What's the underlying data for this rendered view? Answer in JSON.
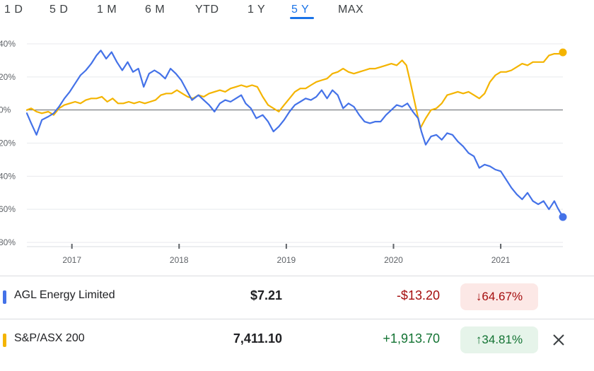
{
  "tabs": [
    {
      "label": "1 D",
      "active": false
    },
    {
      "label": "5 D",
      "active": false
    },
    {
      "label": "1 M",
      "active": false
    },
    {
      "label": "6 M",
      "active": false
    },
    {
      "label": "YTD",
      "active": false
    },
    {
      "label": "1 Y",
      "active": false
    },
    {
      "label": "5 Y",
      "active": true
    },
    {
      "label": "MAX",
      "active": false
    }
  ],
  "rows": [
    {
      "name": "AGL Energy Limited",
      "price": "$7.21",
      "change": "-$13.20",
      "percent": "64.67%",
      "direction": "down",
      "color": "#4472e8",
      "change_color": "#a50e0e",
      "badge_bg": "#fce8e6"
    },
    {
      "name": "S&P/ASX 200",
      "price": "7,411.10",
      "change": "+1,913.70",
      "percent": "34.81%",
      "direction": "up",
      "color": "#f4b400",
      "change_color": "#137333",
      "badge_bg": "#e6f4ea"
    }
  ],
  "chart_data": {
    "type": "line",
    "y_tick_labels": [
      "40%",
      "20%",
      "0%",
      "20%",
      "40%",
      "60%",
      "80%"
    ],
    "y_ticks": [
      40,
      20,
      0,
      -20,
      -40,
      -60,
      -80
    ],
    "ylim": [
      -80,
      40
    ],
    "x_tick_labels": [
      "2017",
      "2018",
      "2019",
      "2020",
      "2021"
    ],
    "x_ticks": [
      2017,
      2018,
      2019,
      2020,
      2021
    ],
    "xlim": [
      2016.58,
      2021.58
    ],
    "zero_line": true,
    "series": [
      {
        "name": "AGL Energy Limited",
        "color": "#4472e8",
        "points": [
          [
            2016.58,
            -2
          ],
          [
            2016.62,
            -8
          ],
          [
            2016.67,
            -15
          ],
          [
            2016.72,
            -6
          ],
          [
            2016.78,
            -4
          ],
          [
            2016.83,
            -2
          ],
          [
            2016.88,
            2
          ],
          [
            2016.93,
            7
          ],
          [
            2016.98,
            11
          ],
          [
            2017.03,
            16
          ],
          [
            2017.08,
            21
          ],
          [
            2017.13,
            24
          ],
          [
            2017.18,
            28
          ],
          [
            2017.23,
            33
          ],
          [
            2017.27,
            36
          ],
          [
            2017.32,
            31
          ],
          [
            2017.37,
            35
          ],
          [
            2017.42,
            29
          ],
          [
            2017.47,
            24
          ],
          [
            2017.52,
            29
          ],
          [
            2017.57,
            23
          ],
          [
            2017.62,
            25
          ],
          [
            2017.67,
            14
          ],
          [
            2017.72,
            22
          ],
          [
            2017.77,
            24
          ],
          [
            2017.82,
            22
          ],
          [
            2017.87,
            19
          ],
          [
            2017.92,
            25
          ],
          [
            2017.97,
            22
          ],
          [
            2018.02,
            18
          ],
          [
            2018.07,
            12
          ],
          [
            2018.12,
            6
          ],
          [
            2018.18,
            9
          ],
          [
            2018.23,
            6
          ],
          [
            2018.28,
            3
          ],
          [
            2018.33,
            -1
          ],
          [
            2018.38,
            4
          ],
          [
            2018.43,
            6
          ],
          [
            2018.48,
            5
          ],
          [
            2018.53,
            7
          ],
          [
            2018.58,
            9
          ],
          [
            2018.62,
            4
          ],
          [
            2018.67,
            1
          ],
          [
            2018.72,
            -5
          ],
          [
            2018.78,
            -3
          ],
          [
            2018.83,
            -7
          ],
          [
            2018.88,
            -13
          ],
          [
            2018.93,
            -10
          ],
          [
            2018.98,
            -6
          ],
          [
            2019.03,
            -1
          ],
          [
            2019.08,
            3
          ],
          [
            2019.13,
            5
          ],
          [
            2019.18,
            7
          ],
          [
            2019.23,
            6
          ],
          [
            2019.28,
            8
          ],
          [
            2019.33,
            12
          ],
          [
            2019.38,
            7
          ],
          [
            2019.43,
            12
          ],
          [
            2019.48,
            9
          ],
          [
            2019.53,
            1
          ],
          [
            2019.58,
            4
          ],
          [
            2019.63,
            2
          ],
          [
            2019.68,
            -3
          ],
          [
            2019.73,
            -7
          ],
          [
            2019.78,
            -8
          ],
          [
            2019.83,
            -7
          ],
          [
            2019.88,
            -7
          ],
          [
            2019.93,
            -3
          ],
          [
            2019.98,
            0
          ],
          [
            2020.03,
            3
          ],
          [
            2020.08,
            2
          ],
          [
            2020.13,
            4
          ],
          [
            2020.18,
            -1
          ],
          [
            2020.23,
            -5
          ],
          [
            2020.26,
            -13
          ],
          [
            2020.3,
            -21
          ],
          [
            2020.35,
            -16
          ],
          [
            2020.4,
            -15
          ],
          [
            2020.45,
            -18
          ],
          [
            2020.5,
            -14
          ],
          [
            2020.55,
            -15
          ],
          [
            2020.6,
            -19
          ],
          [
            2020.65,
            -22
          ],
          [
            2020.7,
            -26
          ],
          [
            2020.75,
            -28
          ],
          [
            2020.8,
            -35
          ],
          [
            2020.85,
            -33
          ],
          [
            2020.9,
            -34
          ],
          [
            2020.95,
            -36
          ],
          [
            2021.0,
            -37
          ],
          [
            2021.05,
            -42
          ],
          [
            2021.1,
            -47
          ],
          [
            2021.15,
            -51
          ],
          [
            2021.2,
            -54
          ],
          [
            2021.25,
            -50
          ],
          [
            2021.3,
            -55
          ],
          [
            2021.35,
            -57
          ],
          [
            2021.4,
            -55
          ],
          [
            2021.45,
            -60
          ],
          [
            2021.5,
            -55
          ],
          [
            2021.53,
            -59
          ],
          [
            2021.58,
            -64.67
          ]
        ]
      },
      {
        "name": "S&P/ASX 200",
        "color": "#f4b400",
        "points": [
          [
            2016.58,
            0
          ],
          [
            2016.62,
            1
          ],
          [
            2016.67,
            -1
          ],
          [
            2016.72,
            -2
          ],
          [
            2016.78,
            -1
          ],
          [
            2016.83,
            -3
          ],
          [
            2016.88,
            1
          ],
          [
            2016.93,
            3
          ],
          [
            2016.98,
            4
          ],
          [
            2017.03,
            5
          ],
          [
            2017.08,
            4
          ],
          [
            2017.13,
            6
          ],
          [
            2017.18,
            7
          ],
          [
            2017.23,
            7
          ],
          [
            2017.28,
            8
          ],
          [
            2017.33,
            5
          ],
          [
            2017.38,
            7
          ],
          [
            2017.43,
            4
          ],
          [
            2017.48,
            4
          ],
          [
            2017.53,
            5
          ],
          [
            2017.58,
            4
          ],
          [
            2017.63,
            5
          ],
          [
            2017.68,
            4
          ],
          [
            2017.73,
            5
          ],
          [
            2017.78,
            6
          ],
          [
            2017.83,
            9
          ],
          [
            2017.88,
            10
          ],
          [
            2017.93,
            10
          ],
          [
            2017.98,
            12
          ],
          [
            2018.03,
            10
          ],
          [
            2018.08,
            8
          ],
          [
            2018.13,
            7
          ],
          [
            2018.18,
            9
          ],
          [
            2018.23,
            8
          ],
          [
            2018.28,
            10
          ],
          [
            2018.33,
            11
          ],
          [
            2018.38,
            12
          ],
          [
            2018.43,
            11
          ],
          [
            2018.48,
            13
          ],
          [
            2018.53,
            14
          ],
          [
            2018.58,
            15
          ],
          [
            2018.63,
            14
          ],
          [
            2018.68,
            15
          ],
          [
            2018.73,
            14
          ],
          [
            2018.78,
            8
          ],
          [
            2018.83,
            3
          ],
          [
            2018.88,
            1
          ],
          [
            2018.93,
            -1
          ],
          [
            2018.98,
            3
          ],
          [
            2019.03,
            7
          ],
          [
            2019.08,
            11
          ],
          [
            2019.13,
            13
          ],
          [
            2019.18,
            13
          ],
          [
            2019.23,
            15
          ],
          [
            2019.28,
            17
          ],
          [
            2019.33,
            18
          ],
          [
            2019.38,
            19
          ],
          [
            2019.43,
            22
          ],
          [
            2019.48,
            23
          ],
          [
            2019.53,
            25
          ],
          [
            2019.58,
            23
          ],
          [
            2019.63,
            22
          ],
          [
            2019.68,
            23
          ],
          [
            2019.73,
            24
          ],
          [
            2019.78,
            25
          ],
          [
            2019.83,
            25
          ],
          [
            2019.88,
            26
          ],
          [
            2019.93,
            27
          ],
          [
            2019.98,
            28
          ],
          [
            2020.03,
            27
          ],
          [
            2020.08,
            30
          ],
          [
            2020.12,
            27
          ],
          [
            2020.16,
            16
          ],
          [
            2020.2,
            4
          ],
          [
            2020.25,
            -11
          ],
          [
            2020.3,
            -5
          ],
          [
            2020.35,
            0
          ],
          [
            2020.4,
            1
          ],
          [
            2020.45,
            4
          ],
          [
            2020.5,
            9
          ],
          [
            2020.55,
            10
          ],
          [
            2020.6,
            11
          ],
          [
            2020.65,
            10
          ],
          [
            2020.7,
            11
          ],
          [
            2020.75,
            9
          ],
          [
            2020.8,
            7
          ],
          [
            2020.85,
            10
          ],
          [
            2020.9,
            17
          ],
          [
            2020.95,
            21
          ],
          [
            2021.0,
            23
          ],
          [
            2021.05,
            23
          ],
          [
            2021.1,
            24
          ],
          [
            2021.15,
            26
          ],
          [
            2021.2,
            28
          ],
          [
            2021.25,
            27
          ],
          [
            2021.3,
            29
          ],
          [
            2021.35,
            29
          ],
          [
            2021.4,
            29
          ],
          [
            2021.45,
            33
          ],
          [
            2021.5,
            34
          ],
          [
            2021.55,
            34
          ],
          [
            2021.58,
            34.81
          ]
        ]
      }
    ]
  }
}
